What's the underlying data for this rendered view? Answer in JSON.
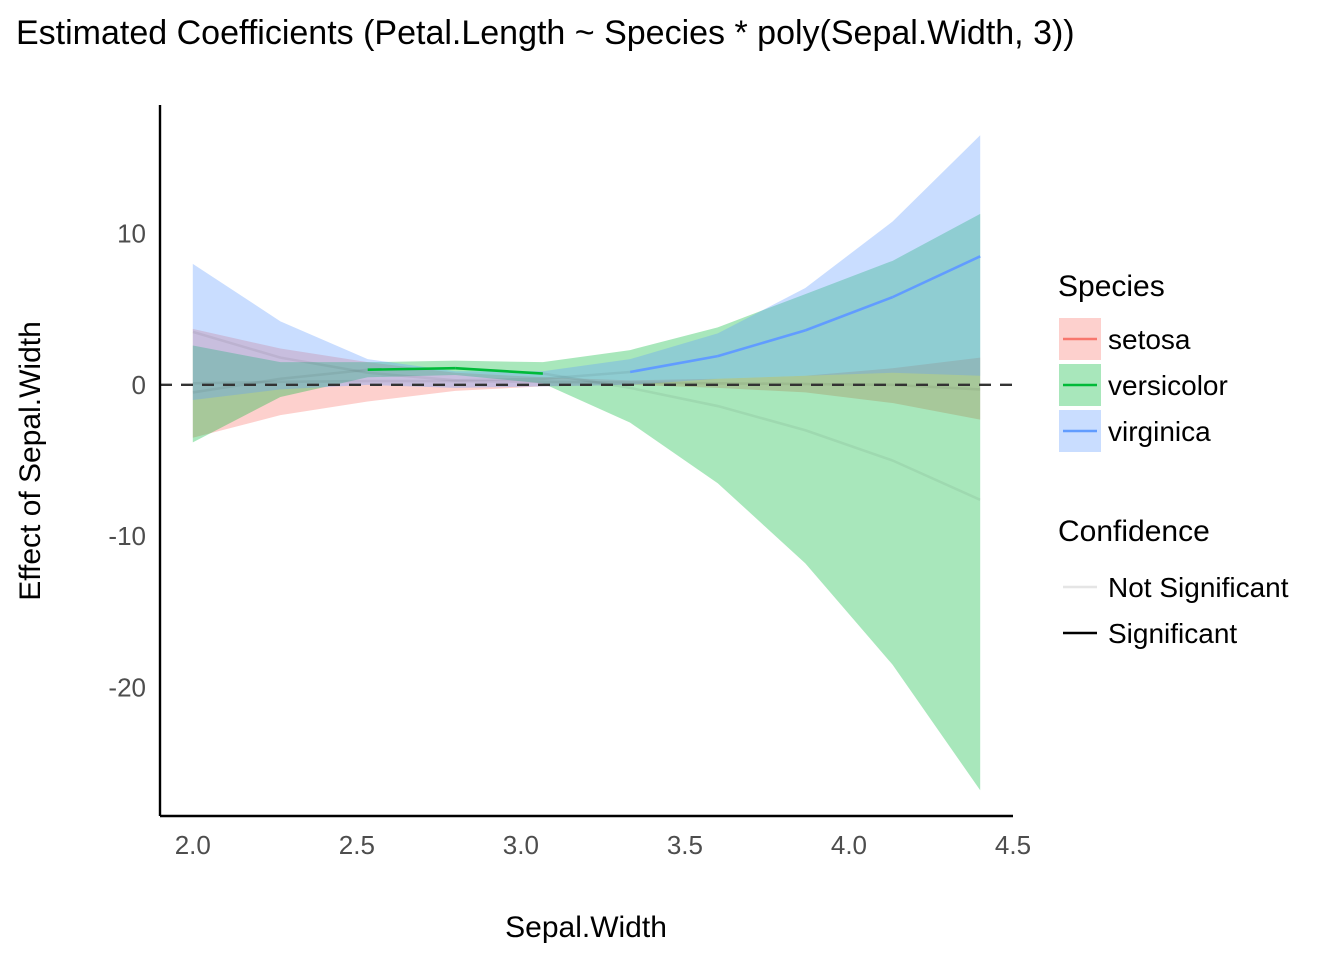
{
  "chart_data": {
    "type": "line",
    "title": "Estimated Coefficients (Petal.Length ~ Species * poly(Sepal.Width, 3))",
    "xlabel": "Sepal.Width",
    "ylabel": "Effect of Sepal.Width",
    "xlim": [
      1.9,
      4.5
    ],
    "ylim": [
      -28.5,
      18.5
    ],
    "x_ticks": [
      2.0,
      2.5,
      3.0,
      3.5,
      4.0,
      4.5
    ],
    "x_tick_labels": [
      "2.0",
      "2.5",
      "3.0",
      "3.5",
      "4.0",
      "4.5"
    ],
    "y_ticks": [
      -20,
      -10,
      0,
      10
    ],
    "y_tick_labels": [
      "-20",
      "-10",
      "0",
      "10"
    ],
    "reference_line": 0,
    "grid": false,
    "x": [
      2.0,
      2.267,
      2.533,
      2.8,
      3.067,
      3.333,
      3.6,
      3.867,
      4.133,
      4.4
    ],
    "series": [
      {
        "name": "setosa",
        "color": "#F8766D",
        "fill": "#F8766D",
        "estimate": [
          0.1,
          0.2,
          0.25,
          0.25,
          0.2,
          0.15,
          0.1,
          0.05,
          0.0,
          -0.3
        ],
        "lower": [
          -3.5,
          -2.0,
          -1.1,
          -0.4,
          -0.1,
          0.0,
          -0.2,
          -0.5,
          -1.2,
          -2.3
        ],
        "upper": [
          3.7,
          2.4,
          1.5,
          0.8,
          0.5,
          0.3,
          0.4,
          0.6,
          1.1,
          1.8
        ],
        "significant": [
          false,
          false,
          false,
          false,
          false,
          false,
          false,
          false,
          false,
          false
        ]
      },
      {
        "name": "versicolor",
        "color": "#00BA38",
        "fill": "#00BA38",
        "estimate": [
          -0.5,
          0.4,
          1.0,
          1.1,
          0.75,
          -0.2,
          -1.4,
          -3.0,
          -5.0,
          -7.6
        ],
        "lower": [
          -3.8,
          -0.8,
          0.5,
          0.65,
          0.1,
          -2.5,
          -6.5,
          -11.8,
          -18.5,
          -26.8
        ],
        "upper": [
          2.6,
          1.5,
          1.5,
          1.6,
          1.5,
          2.3,
          3.8,
          6.0,
          8.2,
          11.3
        ],
        "significant": [
          false,
          false,
          true,
          true,
          true,
          false,
          false,
          false,
          false,
          false
        ]
      },
      {
        "name": "virginica",
        "color": "#619CFF",
        "fill": "#619CFF",
        "estimate": [
          3.5,
          1.8,
          0.8,
          0.3,
          0.4,
          0.85,
          1.9,
          3.6,
          5.8,
          8.5
        ],
        "lower": [
          -1.0,
          -0.3,
          0.0,
          -0.2,
          -0.1,
          0.0,
          0.4,
          0.6,
          0.8,
          0.6
        ],
        "upper": [
          8.0,
          4.2,
          1.7,
          0.9,
          0.9,
          1.7,
          3.4,
          6.4,
          10.8,
          16.5
        ],
        "significant": [
          false,
          false,
          false,
          false,
          false,
          true,
          true,
          true,
          true,
          true
        ]
      }
    ],
    "legend": {
      "position": "right",
      "species_title": "Species",
      "species_items": [
        "setosa",
        "versicolor",
        "virginica"
      ],
      "confidence_title": "Confidence",
      "confidence_items": [
        {
          "label": "Not Significant",
          "color": "#E5E5E5"
        },
        {
          "label": "Significant",
          "color": "#000000"
        }
      ]
    }
  }
}
